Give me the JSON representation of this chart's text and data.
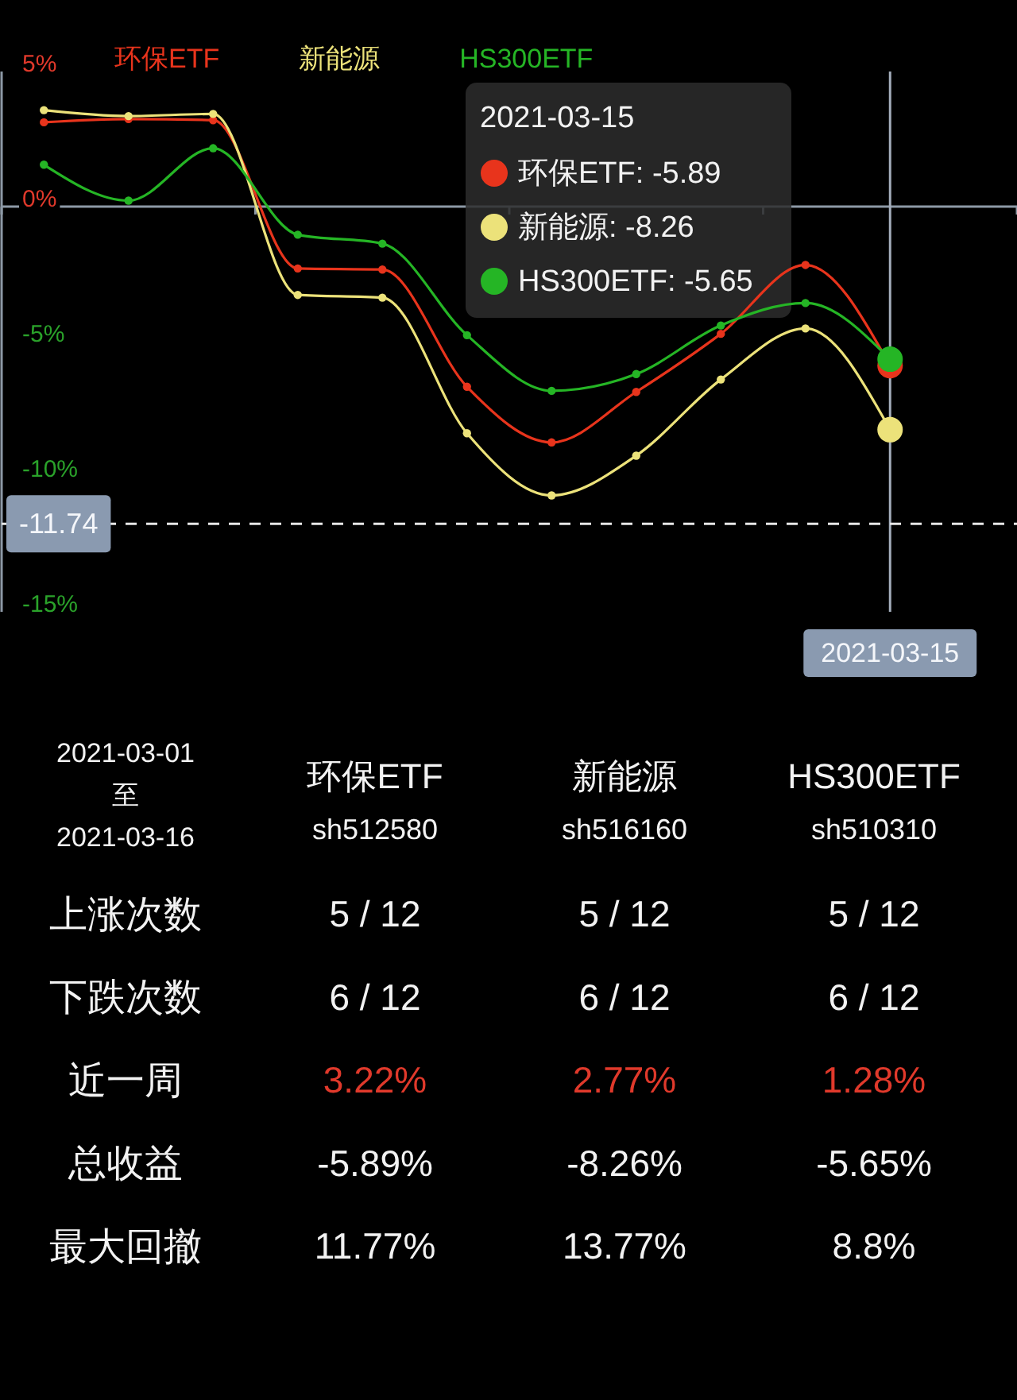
{
  "chart_data": [
    {
      "type": "line",
      "categories": [
        null,
        null,
        null,
        null,
        null,
        null,
        null,
        null,
        null,
        null,
        "2021-03-15",
        null
      ],
      "series": [
        {
          "name": "环保ETF",
          "color": "#e8341c",
          "values": [
            3.12,
            3.24,
            3.2,
            -2.29,
            -2.33,
            -6.67,
            -8.73,
            -6.86,
            -4.71,
            -2.16,
            -5.89,
            null
          ]
        },
        {
          "name": "新能源",
          "color": "#ece27a",
          "values": [
            3.57,
            3.35,
            3.43,
            -3.27,
            -3.37,
            -8.39,
            -10.69,
            -9.22,
            -6.4,
            -4.51,
            -8.26,
            null
          ]
        },
        {
          "name": "HS300ETF",
          "color": "#25b525",
          "values": [
            1.55,
            0.22,
            2.16,
            -1.04,
            -1.37,
            -4.76,
            -6.82,
            -6.2,
            -4.4,
            -3.57,
            -5.65,
            null
          ]
        }
      ],
      "ylim": [
        -15,
        5
      ],
      "yticks": [
        {
          "value": 5,
          "label": "5%"
        },
        {
          "value": 0,
          "label": "0%"
        },
        {
          "value": -5,
          "label": "-5%"
        },
        {
          "value": -10,
          "label": "-10%"
        },
        {
          "value": -15,
          "label": "-15%"
        }
      ],
      "ref_lines": [
        {
          "axis": "y",
          "value": -11.74,
          "label": "-11.74",
          "line_style": "dashed",
          "color": "#e6e6e6"
        }
      ],
      "annotations": [
        "2021-03-15",
        "环保ETF: -5.89",
        "新能源: -8.26",
        "HS300ETF: -5.65"
      ],
      "legend": "top left",
      "marker": "circle",
      "line_style": "solid"
    },
    {
      "type": "other",
      "title": "2021-03-01\n至\n2021-03-16",
      "categories": [
        "环保ETF\nsh512580",
        "新能源\nsh516160",
        "HS300ETF\nsh510310"
      ],
      "y_categories": [
        "上涨次数",
        "下跌次数",
        "近一周",
        "总收益",
        "最大回撤"
      ],
      "cell_labels": [
        [
          "5 / 12",
          "5 / 12",
          "5 / 12"
        ],
        [
          "6 / 12",
          "6 / 12",
          "6 / 12"
        ],
        [
          "3.22%",
          "2.77%",
          "1.28%"
        ],
        [
          "-5.89%",
          "-8.26%",
          "-5.65%"
        ],
        [
          "11.77%",
          "13.77%",
          "8.8%"
        ]
      ],
      "colors": [
        "#f2f2f2",
        "#f2f2f2",
        "#e0392b",
        "#f2f2f2",
        "#f2f2f2"
      ]
    }
  ]
}
